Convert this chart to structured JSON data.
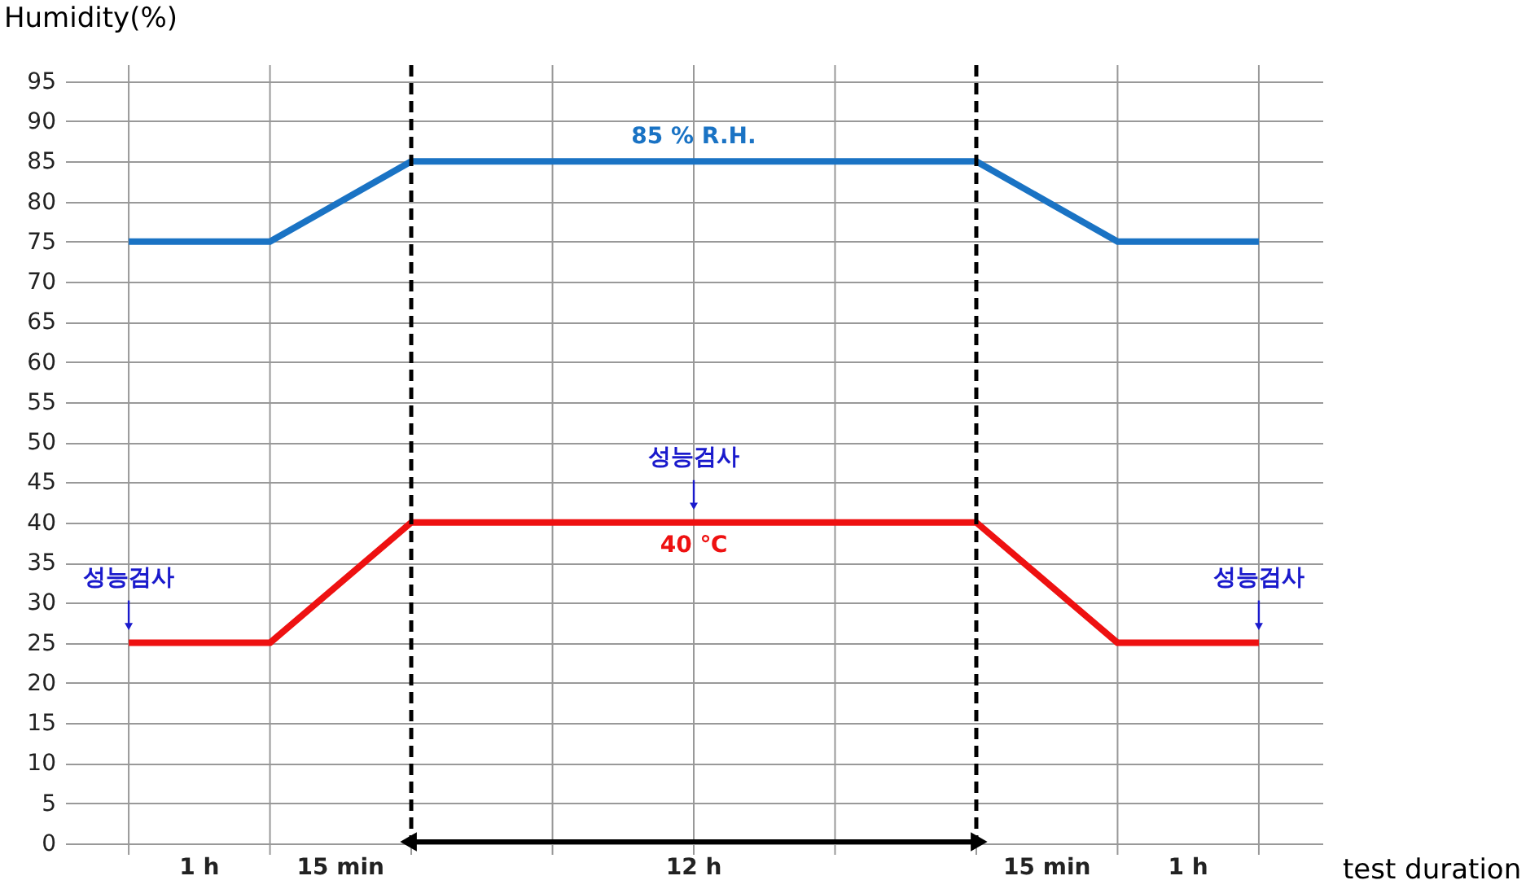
{
  "chart_data": {
    "type": "line",
    "ylabel": "Humidity(%)",
    "xlabel": "test duration",
    "categories": [
      null,
      null,
      null,
      null,
      null,
      null,
      null,
      null,
      null
    ],
    "series": [
      {
        "name": "85 % R.H.",
        "color": "#1a73c4",
        "values": [
          75,
          75,
          85,
          85,
          85,
          85,
          85,
          75,
          75
        ]
      },
      {
        "name": "40 ℃",
        "color": "#ee1111",
        "values": [
          25,
          25,
          40,
          40,
          40,
          40,
          40,
          25,
          25
        ],
        "value_labels": [
          "성능검사",
          null,
          null,
          null,
          "성능검사",
          null,
          null,
          null,
          "성능검사"
        ]
      }
    ],
    "ylim": [
      0,
      97
    ],
    "yticks": [
      0,
      5,
      10,
      15,
      20,
      25,
      30,
      35,
      40,
      45,
      50,
      55,
      60,
      65,
      70,
      75,
      80,
      85,
      90,
      95
    ],
    "annotations": [
      "1 h",
      "15 min",
      "12 h",
      "15 min",
      "1 h"
    ],
    "grid": true,
    "marker": "none",
    "line_style": "solid"
  }
}
